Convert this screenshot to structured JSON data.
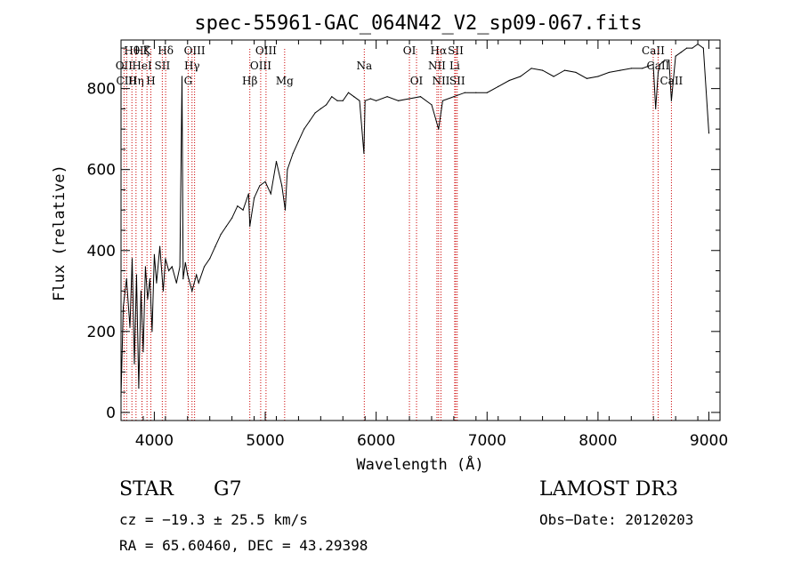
{
  "chart_data": {
    "type": "line",
    "title": "spec-55961-GAC_064N42_V2_sp09-067.fits",
    "xlabel": "Wavelength (Å)",
    "ylabel": "Flux (relative)",
    "xlim": [
      3700,
      9100
    ],
    "ylim": [
      -20,
      920
    ],
    "xticks": [
      4000,
      5000,
      6000,
      7000,
      8000,
      9000
    ],
    "yticks": [
      0,
      200,
      400,
      600,
      800
    ],
    "series": [
      {
        "name": "flux",
        "x": [
          3700,
          3720,
          3750,
          3780,
          3800,
          3820,
          3840,
          3860,
          3880,
          3900,
          3920,
          3940,
          3960,
          3980,
          4000,
          4020,
          4050,
          4080,
          4100,
          4130,
          4160,
          4200,
          4230,
          4250,
          4260,
          4280,
          4300,
          4340,
          4380,
          4400,
          4450,
          4500,
          4550,
          4600,
          4650,
          4700,
          4750,
          4800,
          4850,
          4861,
          4900,
          4950,
          5000,
          5050,
          5100,
          5150,
          5180,
          5200,
          5250,
          5300,
          5350,
          5400,
          5450,
          5500,
          5550,
          5600,
          5650,
          5700,
          5750,
          5800,
          5850,
          5890,
          5900,
          5950,
          6000,
          6100,
          6200,
          6300,
          6400,
          6500,
          6563,
          6600,
          6700,
          6800,
          6900,
          7000,
          7100,
          7200,
          7300,
          7400,
          7500,
          7600,
          7700,
          7800,
          7900,
          8000,
          8100,
          8200,
          8300,
          8400,
          8498,
          8520,
          8542,
          8560,
          8600,
          8640,
          8662,
          8700,
          8750,
          8800,
          8850,
          8900,
          8950,
          9000
        ],
        "values": [
          40,
          260,
          330,
          210,
          380,
          120,
          340,
          60,
          300,
          150,
          360,
          280,
          330,
          200,
          390,
          320,
          410,
          300,
          380,
          350,
          360,
          320,
          360,
          830,
          330,
          370,
          340,
          300,
          340,
          320,
          360,
          380,
          410,
          440,
          460,
          480,
          510,
          500,
          540,
          460,
          530,
          560,
          570,
          540,
          620,
          560,
          500,
          600,
          640,
          670,
          700,
          720,
          740,
          750,
          760,
          780,
          770,
          770,
          790,
          780,
          770,
          640,
          770,
          775,
          770,
          780,
          770,
          775,
          780,
          760,
          700,
          770,
          780,
          790,
          790,
          790,
          805,
          820,
          830,
          850,
          845,
          830,
          845,
          840,
          825,
          830,
          840,
          845,
          850,
          850,
          860,
          750,
          840,
          860,
          870,
          870,
          770,
          880,
          890,
          900,
          900,
          910,
          900,
          690
        ]
      }
    ],
    "line_markers": [
      {
        "name": "Hθ",
        "wave": 3798,
        "row": 0
      },
      {
        "name": "OII",
        "wave": 3727,
        "row": 1
      },
      {
        "name": "CIII",
        "wave": 3750,
        "row": 2
      },
      {
        "name": "Hη",
        "wave": 3835,
        "row": 2
      },
      {
        "name": "Hζ",
        "wave": 3889,
        "row": 0
      },
      {
        "name": "HeI",
        "wave": 3889,
        "row": 1
      },
      {
        "name": "K",
        "wave": 3934,
        "row": 0
      },
      {
        "name": "SII",
        "wave": 4072,
        "row": 1
      },
      {
        "name": "H",
        "wave": 3969,
        "row": 2
      },
      {
        "name": "Hδ",
        "wave": 4102,
        "row": 0
      },
      {
        "name": "OIII",
        "wave": 4363,
        "row": 0
      },
      {
        "name": "Hγ",
        "wave": 4340,
        "row": 1
      },
      {
        "name": "G",
        "wave": 4305,
        "row": 2
      },
      {
        "name": "Hβ",
        "wave": 4861,
        "row": 2
      },
      {
        "name": "OIII",
        "wave": 4959,
        "row": 1
      },
      {
        "name": "OIII",
        "wave": 5007,
        "row": 0
      },
      {
        "name": "Mg",
        "wave": 5175,
        "row": 2
      },
      {
        "name": "Na",
        "wave": 5893,
        "row": 1
      },
      {
        "name": "OI",
        "wave": 6300,
        "row": 0
      },
      {
        "name": "OI",
        "wave": 6364,
        "row": 2
      },
      {
        "name": "Hα",
        "wave": 6563,
        "row": 0
      },
      {
        "name": "NII",
        "wave": 6548,
        "row": 1
      },
      {
        "name": "NII",
        "wave": 6584,
        "row": 2
      },
      {
        "name": "SII",
        "wave": 6717,
        "row": 0
      },
      {
        "name": "Li",
        "wave": 6708,
        "row": 1
      },
      {
        "name": "SII",
        "wave": 6731,
        "row": 2
      },
      {
        "name": "CaII",
        "wave": 8498,
        "row": 0
      },
      {
        "name": "CaII",
        "wave": 8542,
        "row": 1
      },
      {
        "name": "CaII",
        "wave": 8662,
        "row": 2
      }
    ]
  },
  "info": {
    "object_class": "STAR",
    "subclass": "G7",
    "survey": "LAMOST DR3",
    "redshift": "cz = −19.3 ± 25.5 km/s",
    "obs_date": "Obs−Date: 20120203",
    "coords": "RA =  65.60460, DEC =  43.29398"
  },
  "colors": {
    "line": "#000000",
    "marker": "#cc0000"
  }
}
